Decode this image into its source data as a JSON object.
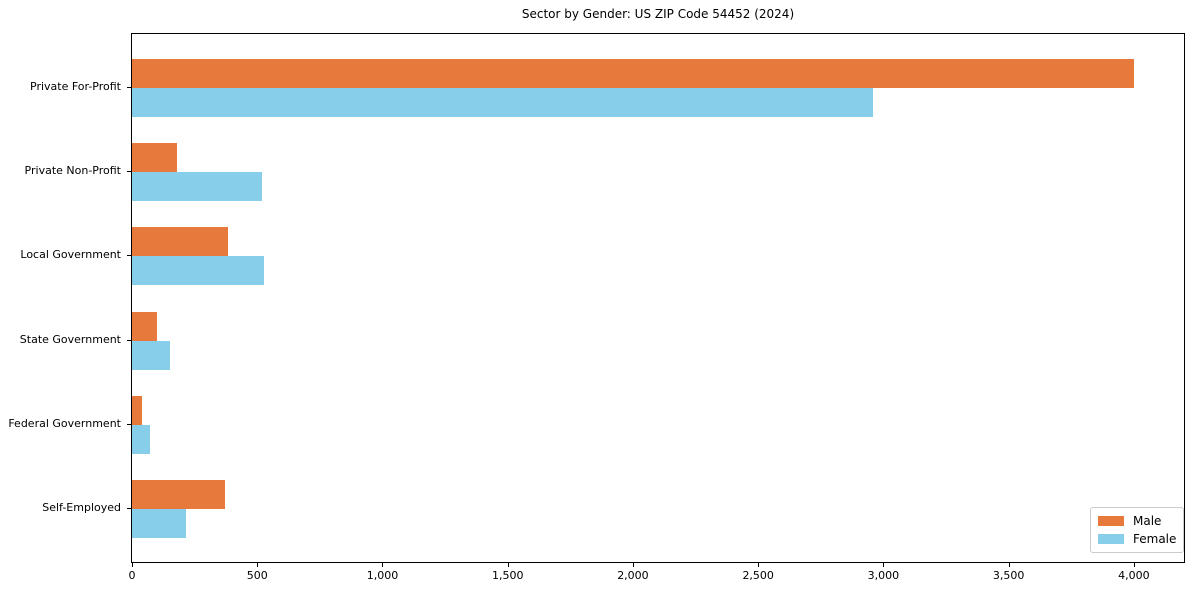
{
  "chart_data": {
    "type": "bar",
    "orientation": "horizontal",
    "title": "Sector by Gender: US ZIP Code 54452 (2024)",
    "categories": [
      "Private For-Profit",
      "Private Non-Profit",
      "Local Government",
      "State Government",
      "Federal Government",
      "Self-Employed"
    ],
    "series": [
      {
        "name": "Male",
        "color": "#E8793C",
        "values": [
          4000,
          180,
          385,
          100,
          40,
          370
        ]
      },
      {
        "name": "Female",
        "color": "#87CEEB",
        "values": [
          2960,
          520,
          525,
          150,
          70,
          215
        ]
      }
    ],
    "xlabel": "",
    "ylabel": "",
    "xlim": [
      0,
      4200
    ],
    "xticks": [
      0,
      500,
      1000,
      1500,
      2000,
      2500,
      3000,
      3500,
      4000
    ],
    "grid": false,
    "legend_position": "lower right",
    "axis_color": "#000000",
    "background_color": "#ffffff"
  }
}
